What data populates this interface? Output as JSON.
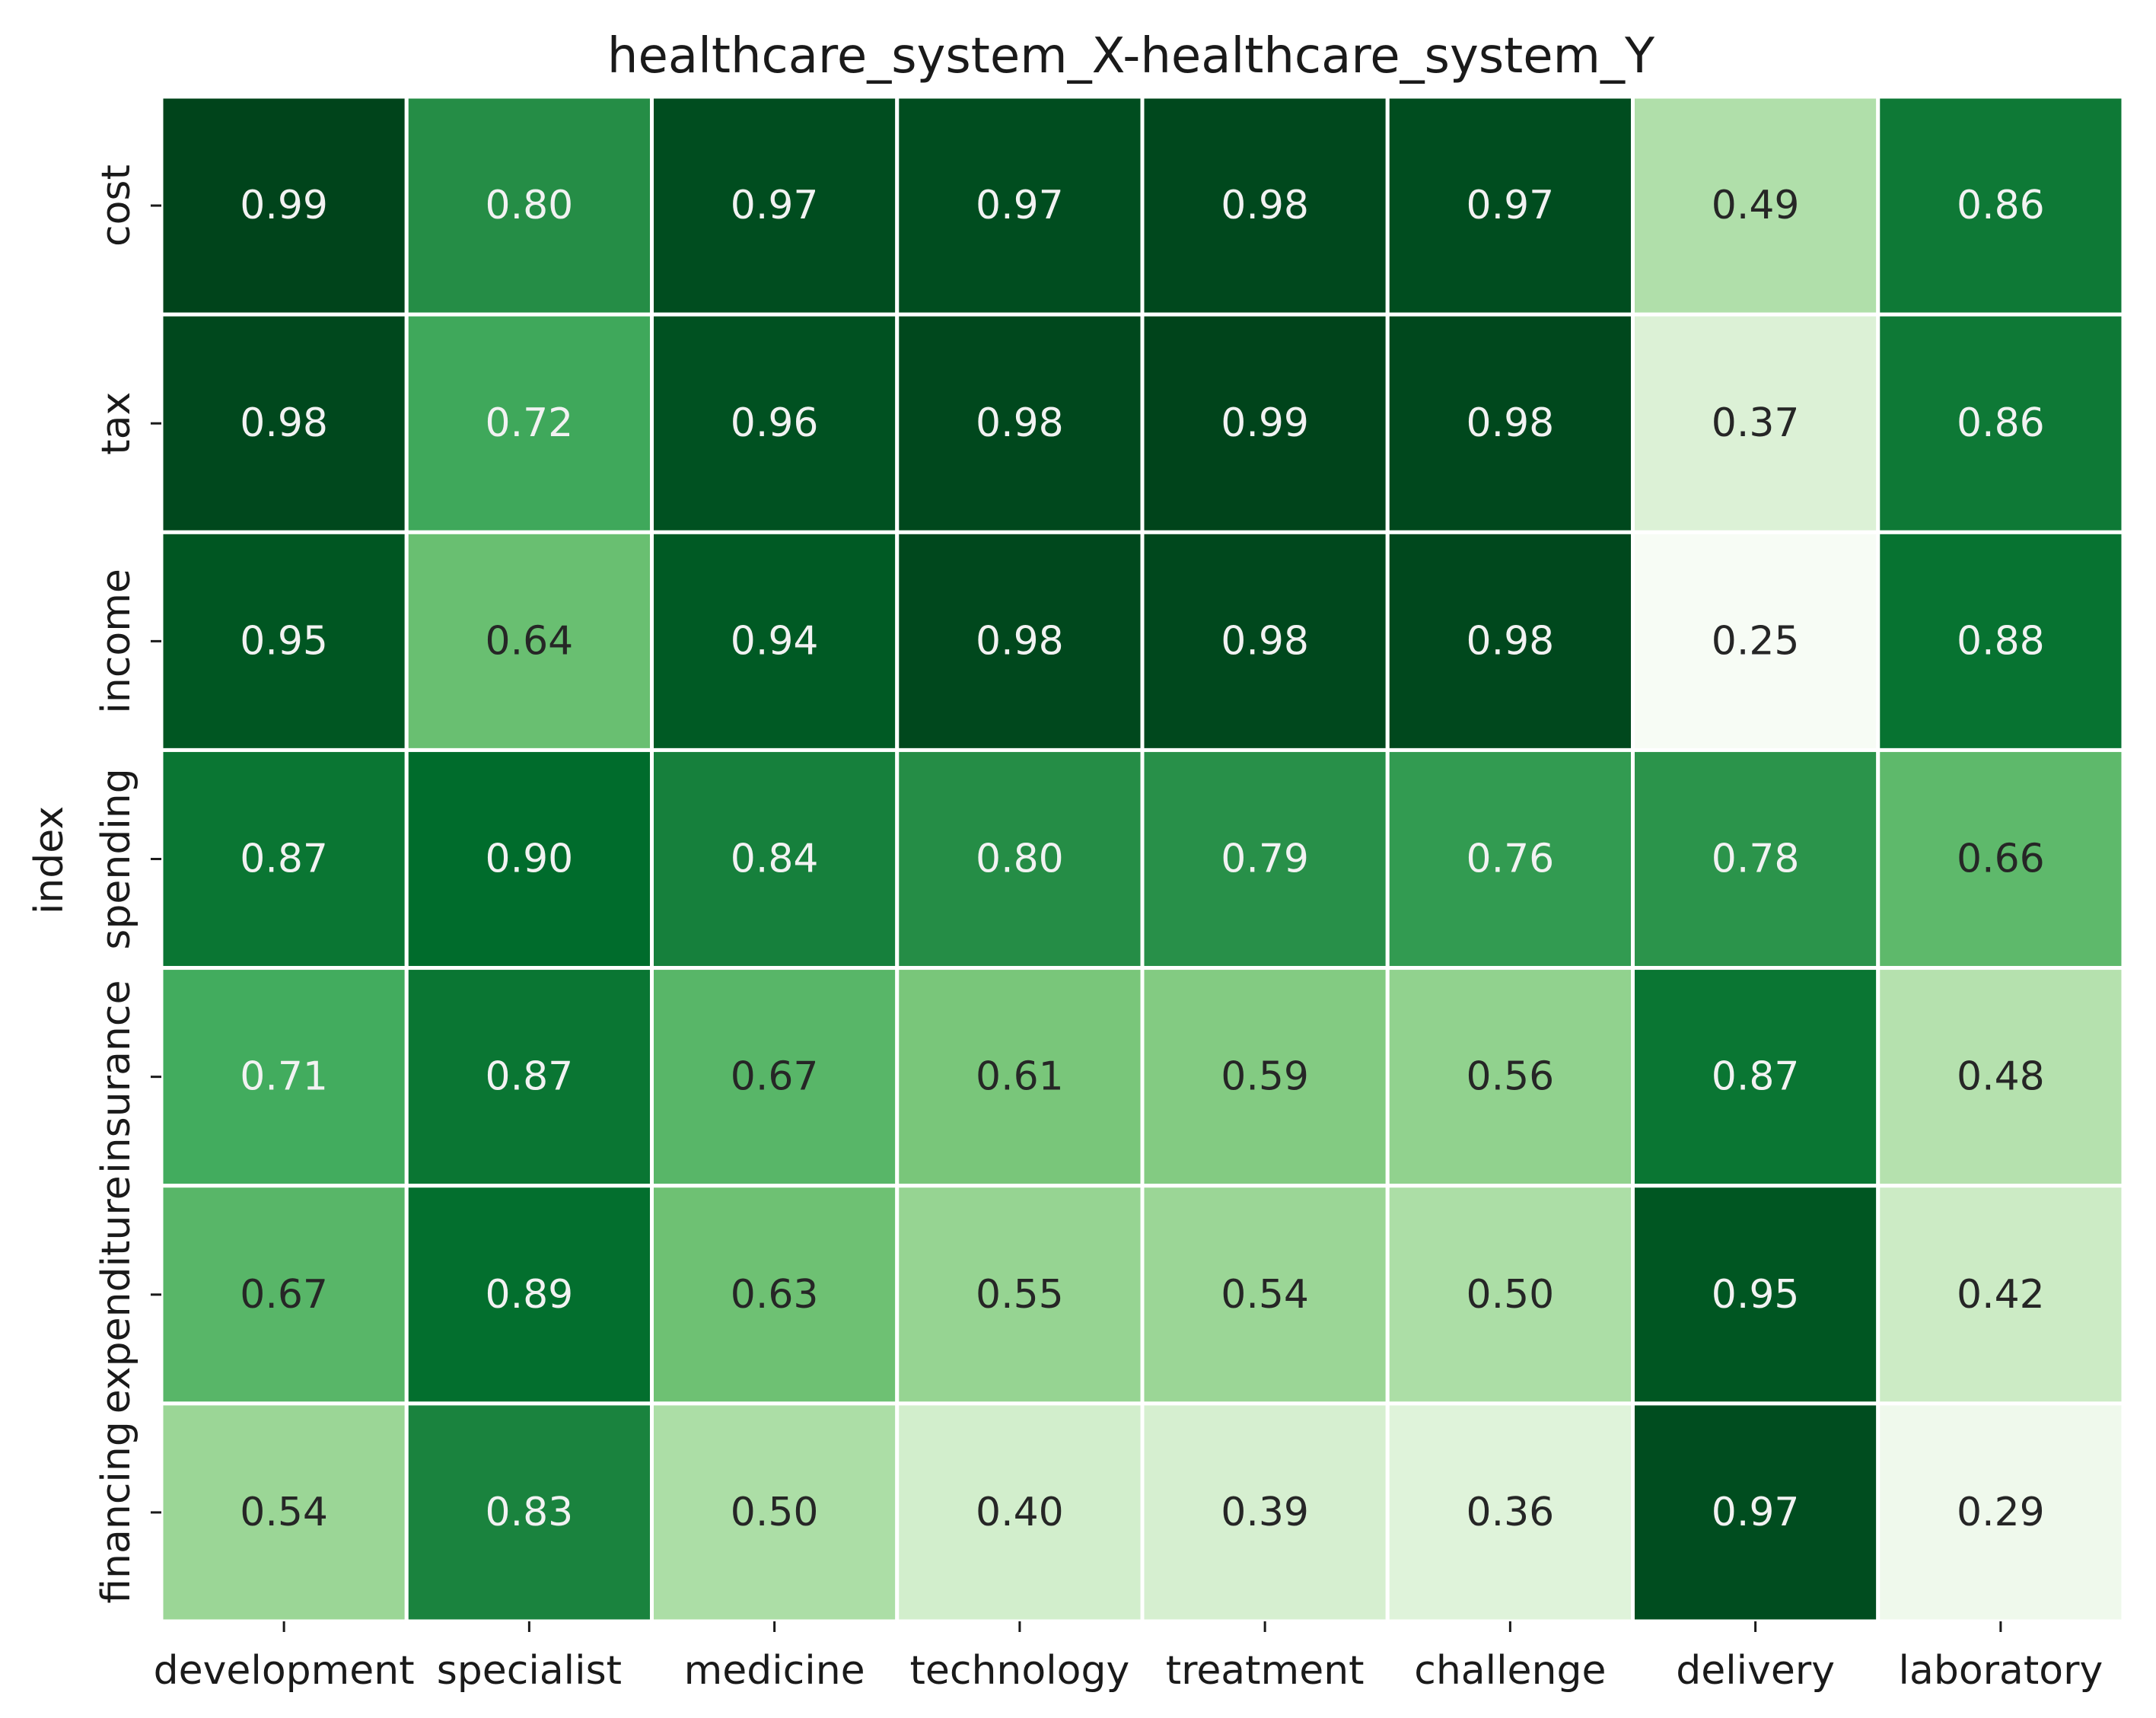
{
  "chart_data": {
    "type": "heatmap",
    "title": "healthcare_system_X-healthcare_system_Y",
    "xlabel": "",
    "ylabel": "index",
    "x_categories": [
      "development",
      "specialist",
      "medicine",
      "technology",
      "treatment",
      "challenge",
      "delivery",
      "laboratory"
    ],
    "y_categories": [
      "cost",
      "tax",
      "income",
      "spending",
      "insurance",
      "expenditure",
      "financing"
    ],
    "values": [
      [
        0.99,
        0.8,
        0.97,
        0.97,
        0.98,
        0.97,
        0.49,
        0.86
      ],
      [
        0.98,
        0.72,
        0.96,
        0.98,
        0.99,
        0.98,
        0.37,
        0.86
      ],
      [
        0.95,
        0.64,
        0.94,
        0.98,
        0.98,
        0.98,
        0.25,
        0.88
      ],
      [
        0.87,
        0.9,
        0.84,
        0.8,
        0.79,
        0.76,
        0.78,
        0.66
      ],
      [
        0.71,
        0.87,
        0.67,
        0.61,
        0.59,
        0.56,
        0.87,
        0.48
      ],
      [
        0.67,
        0.89,
        0.63,
        0.55,
        0.54,
        0.5,
        0.95,
        0.42
      ],
      [
        0.54,
        0.83,
        0.5,
        0.4,
        0.39,
        0.36,
        0.97,
        0.29
      ]
    ],
    "colormap": "Greens",
    "value_range": [
      0.25,
      0.99
    ],
    "colorbar": false,
    "grid_line_color": "#ffffff"
  }
}
